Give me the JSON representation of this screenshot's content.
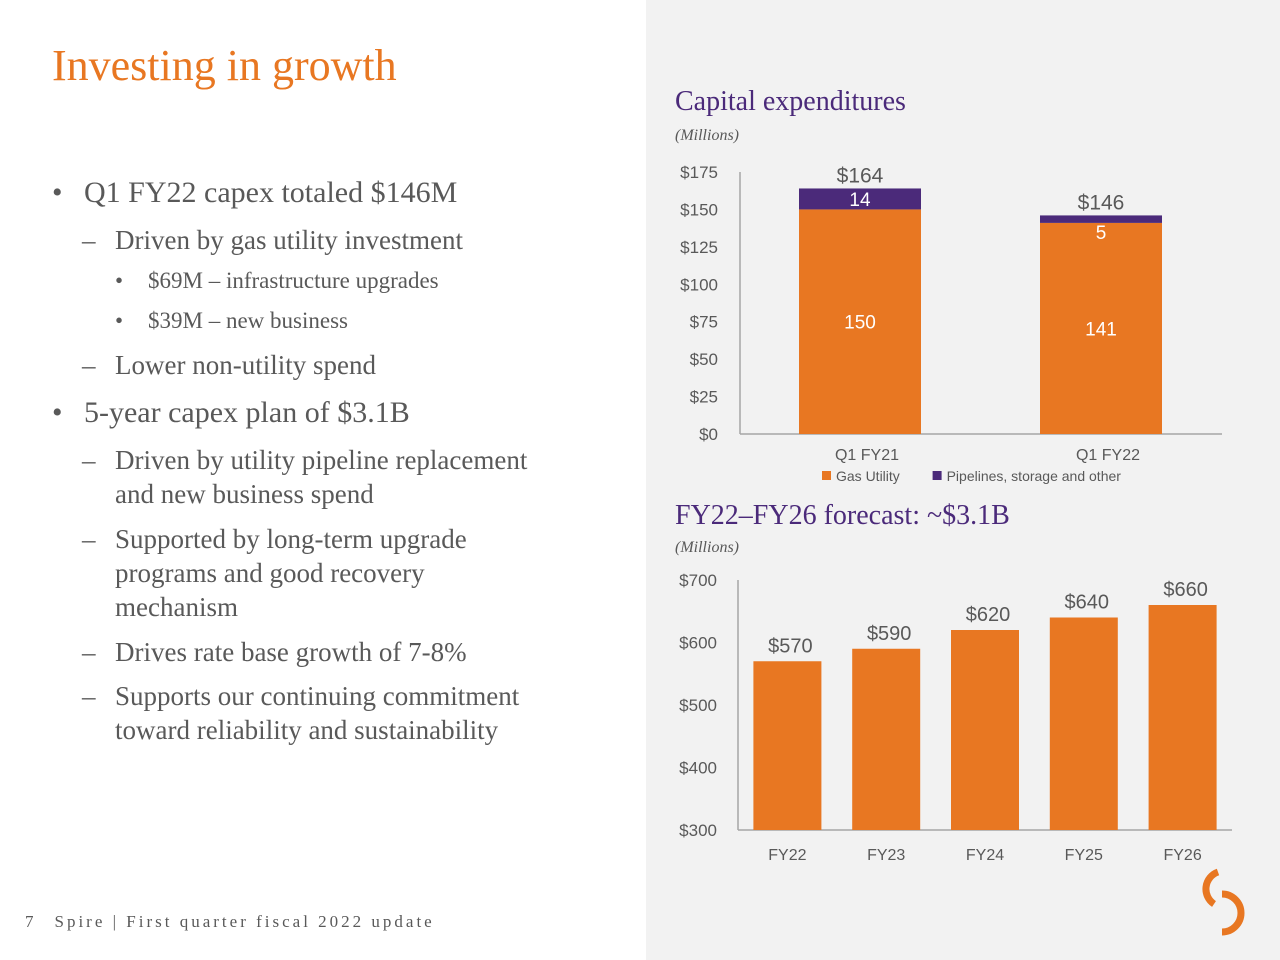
{
  "slide": {
    "title": "Investing in growth",
    "page_number": "7",
    "footer_text": "Spire | First quarter fiscal 2022 update",
    "logo": "spire-logo-icon"
  },
  "bullets": [
    {
      "level": 1,
      "text": "Q1 FY22 capex totaled $146M"
    },
    {
      "level": 2,
      "text": "Driven by gas utility investment"
    },
    {
      "level": 3,
      "text": "$69M – infrastructure upgrades"
    },
    {
      "level": 3,
      "text": "$39M – new business"
    },
    {
      "level": 2,
      "text": "Lower non-utility spend"
    },
    {
      "level": 1,
      "text": "5-year capex plan of $3.1B"
    },
    {
      "level": 2,
      "lines": [
        "Driven by utility pipeline replacement",
        "and new business spend"
      ]
    },
    {
      "level": 2,
      "lines": [
        "Supported by long-term upgrade",
        "programs and good recovery",
        "mechanism"
      ]
    },
    {
      "level": 2,
      "text": "Drives rate base growth of 7-8%"
    },
    {
      "level": 2,
      "lines": [
        "Supports our continuing commitment",
        "toward reliability and sustainability"
      ]
    }
  ],
  "markers": {
    "l1": "•",
    "l2": "–",
    "l3": "•"
  },
  "colors": {
    "orange": "#e87722",
    "purple": "#4b2a7a",
    "text": "#595959",
    "axis": "#a6a6a6"
  },
  "chart_data": [
    {
      "type": "bar",
      "stacked": true,
      "title": "Capital expenditures",
      "subtitle": "(Millions)",
      "categories": [
        "Q1 FY21",
        "Q1 FY22"
      ],
      "series": [
        {
          "name": "Gas Utility",
          "values": [
            150,
            141
          ],
          "color": "#e87722"
        },
        {
          "name": "Pipelines, storage and other",
          "values": [
            14,
            5
          ],
          "color": "#4b2a7a"
        }
      ],
      "totals": [
        164,
        146
      ],
      "total_labels": [
        "$164",
        "$146"
      ],
      "ylim": [
        0,
        175
      ],
      "yticks": [
        0,
        25,
        50,
        75,
        100,
        125,
        150,
        175
      ],
      "ytick_labels": [
        "$0",
        "$25",
        "$50",
        "$75",
        "$100",
        "$125",
        "$150",
        "$175"
      ],
      "legend": "bottom",
      "grid": false
    },
    {
      "type": "bar",
      "title": "FY22–FY26 forecast: ~$3.1B",
      "subtitle": "(Millions)",
      "categories": [
        "FY22",
        "FY23",
        "FY24",
        "FY25",
        "FY26"
      ],
      "values": [
        570,
        590,
        620,
        640,
        660
      ],
      "value_labels": [
        "$570",
        "$590",
        "$620",
        "$640",
        "$660"
      ],
      "color": "#e87722",
      "ylim": [
        300,
        700
      ],
      "yticks": [
        300,
        400,
        500,
        600,
        700
      ],
      "ytick_labels": [
        "$300",
        "$400",
        "$500",
        "$600",
        "$700"
      ],
      "grid": false
    }
  ]
}
